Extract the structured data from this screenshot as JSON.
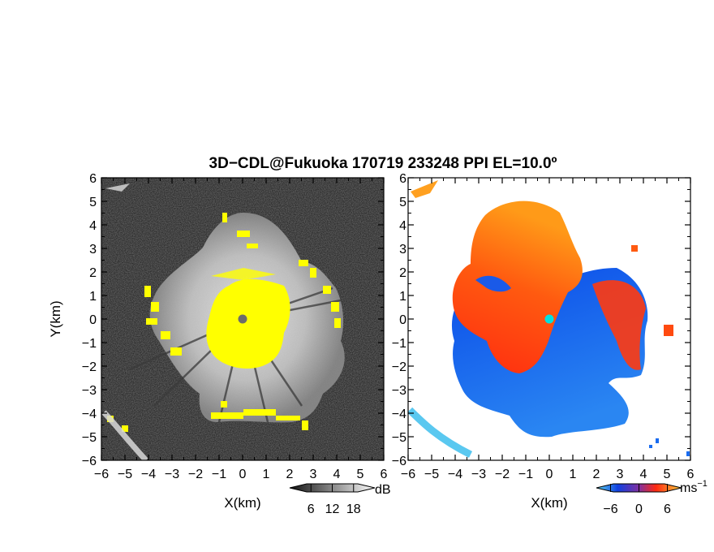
{
  "chart_data": [
    {
      "type": "heatmap",
      "title": "3D−CDL@Fukuoka 170719 233248 PPI EL=10.0º",
      "panel": "reflectivity",
      "xlabel": "X(km)",
      "ylabel": "Y(km)",
      "xlim": [
        -6,
        6
      ],
      "ylim": [
        -6,
        6
      ],
      "xticks": [
        "−6",
        "−5",
        "−4",
        "−3",
        "−2",
        "−1",
        "0",
        "1",
        "2",
        "3",
        "4",
        "5",
        "6"
      ],
      "yticks": [
        "6",
        "5",
        "4",
        "3",
        "2",
        "1",
        "0",
        "−1",
        "−2",
        "−3",
        "−4",
        "−5",
        "−6"
      ],
      "colorbar": {
        "unit": "dB",
        "ticks": [
          "6",
          "12",
          "18"
        ],
        "tick_values": [
          6,
          12,
          18
        ],
        "range": [
          0,
          24
        ]
      },
      "colors": {
        "background": "#2e2e2e",
        "echo": "#cfcfcf",
        "highlight": "#ffff00",
        "center": "#6b6b6b"
      }
    },
    {
      "type": "heatmap",
      "panel": "doppler-velocity",
      "xlabel": "X(km)",
      "ylabel": "",
      "xlim": [
        -6,
        6
      ],
      "ylim": [
        -6,
        6
      ],
      "xticks": [
        "−6",
        "−5",
        "−4",
        "−3",
        "−2",
        "−1",
        "0",
        "1",
        "2",
        "3",
        "4",
        "5",
        "6"
      ],
      "yticks": [
        "6",
        "5",
        "4",
        "3",
        "2",
        "1",
        "0",
        "−1",
        "−2",
        "−3",
        "−4",
        "−5",
        "−6"
      ],
      "colorbar": {
        "unit": "ms",
        "unit_exp": "−1",
        "ticks": [
          "−6",
          "0",
          "6"
        ],
        "tick_values": [
          -6,
          0,
          6
        ],
        "range": [
          -9,
          9
        ]
      },
      "colors": {
        "approach": "#1e6cf0",
        "recede": "#ff3010",
        "recede_far": "#ff8a10",
        "center": "#00e0e0",
        "far_edge": "#5ac8f0"
      }
    }
  ]
}
